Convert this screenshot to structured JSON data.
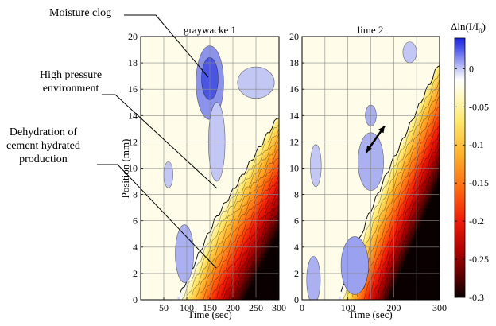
{
  "figure": {
    "annotations": [
      {
        "id": "moisture-clog",
        "text": "Moisture clog"
      },
      {
        "id": "high-pressure",
        "lines": [
          "High pressure",
          "environment"
        ]
      },
      {
        "id": "dehydration",
        "lines": [
          "Dehydration of",
          "cement hydrated",
          "production"
        ]
      }
    ],
    "colorbar": {
      "label": "Δln(I/I",
      "label_sub": "0",
      "label_close": ")",
      "ticks": [
        0,
        -0.05,
        -0.1,
        -0.15,
        -0.2,
        -0.25,
        -0.3
      ],
      "tick_labels": [
        "0",
        "-0.05",
        "-0.1",
        "-0.15",
        "-0.2",
        "-0.25",
        "-0.3"
      ],
      "range": [
        -0.3,
        0.04
      ]
    }
  },
  "chart_data": [
    {
      "type": "heatmap",
      "title": "graywacke 1",
      "xlabel": "Time (sec)",
      "ylabel": "Position (mm)",
      "xlim": [
        0,
        300
      ],
      "ylim": [
        0,
        20
      ],
      "xticks": [
        50,
        100,
        150,
        200,
        250,
        300
      ],
      "xtick_labels": [
        "50",
        "100",
        "150",
        "200",
        "250",
        "300"
      ],
      "yticks": [
        0,
        2,
        4,
        6,
        8,
        10,
        12,
        14,
        16,
        18,
        20
      ],
      "ytick_labels": [
        "0",
        "2",
        "4",
        "6",
        "8",
        "10",
        "12",
        "14",
        "16",
        "18",
        "20"
      ],
      "front_position_mm": [
        {
          "time": 80,
          "position": 0
        },
        {
          "time": 160,
          "position": 6
        },
        {
          "time": 230,
          "position": 10
        },
        {
          "time": 300,
          "position": 14
        }
      ],
      "moisture_clog": {
        "time": [
          125,
          175
        ],
        "position": [
          14.5,
          18.5
        ],
        "peak_value": 0.04
      },
      "min_value": -0.3,
      "grid": true
    },
    {
      "type": "heatmap",
      "title": "lime 2",
      "xlabel": "Time (sec)",
      "ylabel": "",
      "xlim": [
        0,
        300
      ],
      "ylim": [
        0,
        20
      ],
      "xticks": [
        0,
        100,
        200,
        300
      ],
      "xtick_labels": [
        "0",
        "100",
        "200",
        "300"
      ],
      "yticks": [
        0,
        2,
        4,
        6,
        8,
        10,
        12,
        14,
        16,
        18,
        20
      ],
      "ytick_labels": [
        "0",
        "2",
        "4",
        "6",
        "8",
        "10",
        "12",
        "14",
        "16",
        "18",
        "20"
      ],
      "front_position_mm": [
        {
          "time": 80,
          "position": 0
        },
        {
          "time": 140,
          "position": 6
        },
        {
          "time": 190,
          "position": 10
        },
        {
          "time": 300,
          "position": 18
        }
      ],
      "arrow": {
        "from": {
          "time": 140,
          "position": 11.2
        },
        "to": {
          "time": 180,
          "position": 13.2
        }
      },
      "min_value": -0.3,
      "grid": true
    }
  ]
}
